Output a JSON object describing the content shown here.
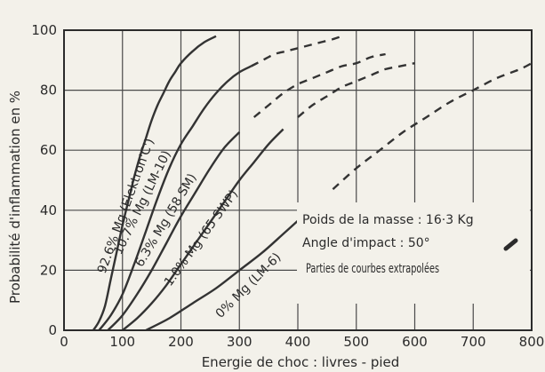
{
  "chart_data": {
    "type": "line",
    "title": "",
    "xlabel": "Energie de choc : livres - pied",
    "ylabel": "Probabilité d'inflammation en %",
    "xlim": [
      0,
      800
    ],
    "ylim": [
      0,
      100
    ],
    "xticks": [
      0,
      100,
      200,
      300,
      400,
      500,
      600,
      700,
      800
    ],
    "yticks": [
      0,
      20,
      40,
      60,
      80,
      100
    ],
    "grid": true,
    "series": [
      {
        "name": "92.6% Mg (Elektron'C')",
        "x": [
          50,
          60,
          70,
          80,
          90,
          100,
          110,
          120,
          130,
          140,
          150,
          160,
          170,
          180,
          190,
          200,
          220,
          240,
          260
        ],
        "y": [
          0,
          3,
          8,
          17,
          26,
          35,
          43,
          51,
          58,
          64,
          70,
          75,
          79,
          83,
          86,
          89,
          93,
          96,
          98
        ],
        "extrapolated_from": null
      },
      {
        "name": "10.7% Mg (LM-10)",
        "x": [
          60,
          80,
          100,
          120,
          140,
          160,
          180,
          200,
          220,
          240,
          260,
          280,
          300,
          320,
          340,
          360,
          380,
          400,
          420,
          440,
          460,
          475
        ],
        "y": [
          0,
          5,
          12,
          22,
          33,
          44,
          54,
          62,
          68,
          74,
          79,
          83,
          86,
          88,
          90,
          92,
          93,
          94,
          95,
          96,
          97,
          98
        ],
        "extrapolated_from": 320
      },
      {
        "name": "6.3% Mg (58 SM)",
        "x": [
          75,
          100,
          125,
          150,
          175,
          200,
          225,
          250,
          275,
          300,
          325,
          350,
          375,
          400,
          425,
          450,
          475,
          500,
          525,
          550
        ],
        "y": [
          0,
          5,
          12,
          20,
          29,
          38,
          46,
          54,
          61,
          66,
          71,
          75,
          79,
          82,
          84,
          86,
          88,
          89,
          91,
          92
        ],
        "extrapolated_from": 320
      },
      {
        "name": "1.0% Mg (65 SWP)",
        "x": [
          100,
          125,
          150,
          175,
          200,
          225,
          250,
          275,
          300,
          325,
          350,
          375,
          400,
          425,
          450,
          475,
          500,
          525,
          550,
          575,
          600
        ],
        "y": [
          0,
          4,
          9,
          15,
          22,
          29,
          36,
          43,
          50,
          56,
          62,
          67,
          71,
          75,
          78,
          81,
          83,
          85,
          87,
          88,
          89
        ],
        "extrapolated_from": 385
      },
      {
        "name": "0% Mg (LM-6)",
        "x": [
          140,
          180,
          220,
          260,
          300,
          340,
          380,
          420,
          460,
          500,
          540,
          580,
          620,
          660,
          700,
          740,
          780,
          800
        ],
        "y": [
          0,
          4,
          9,
          14,
          20,
          26,
          33,
          40,
          47,
          54,
          60,
          66,
          71,
          76,
          80,
          84,
          87,
          89
        ],
        "extrapolated_from": 440
      }
    ],
    "annotations": [
      "Poids de la masse : 16·3 Kg",
      "Angle d'impact : 50°",
      "Parties de courbes extrapolées"
    ]
  }
}
